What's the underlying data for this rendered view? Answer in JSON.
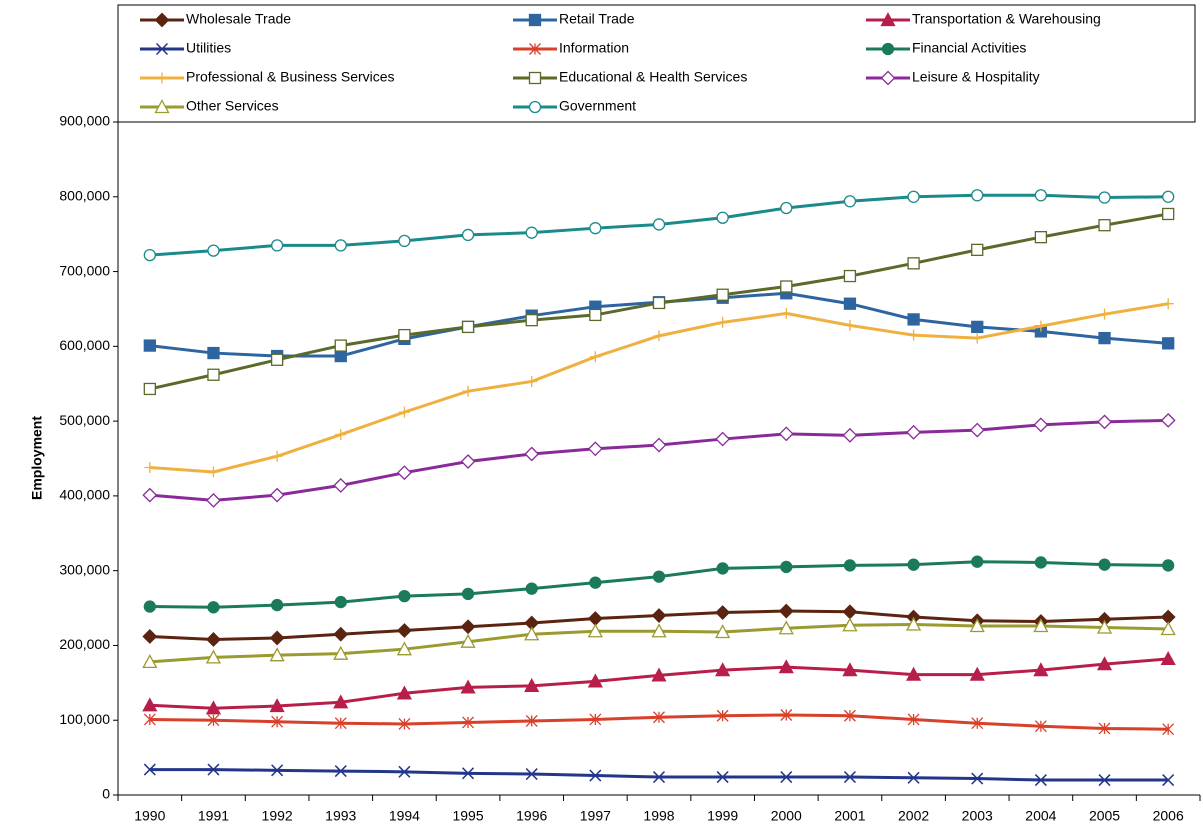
{
  "chart_data": {
    "type": "line",
    "y_label": "Employment",
    "categories": [
      "1990",
      "1991",
      "1992",
      "1993",
      "1994",
      "1995",
      "1996",
      "1997",
      "1998",
      "1999",
      "2000",
      "2001",
      "2002",
      "2003",
      "2004",
      "2005",
      "2006"
    ],
    "ylim": [
      0,
      900000
    ],
    "yticks": [
      0,
      {
        "value": 100000,
        "label": "100,000"
      },
      {
        "value": 200000,
        "label": "200,000"
      },
      {
        "value": 300000,
        "label": "300,000"
      },
      {
        "value": 400000,
        "label": "400,000"
      },
      {
        "value": 500000,
        "label": "500,000"
      },
      {
        "value": 600000,
        "label": "600,000"
      },
      {
        "value": 700000,
        "label": "700,000"
      },
      {
        "value": 800000,
        "label": "800,000"
      },
      {
        "value": 900000,
        "label": "900,000"
      }
    ],
    "grid": false,
    "legend": "top",
    "series": [
      {
        "name": "Wholesale Trade",
        "color": "#5a2410",
        "marker": "diamond",
        "values": [
          212000,
          208000,
          210000,
          215000,
          220000,
          225000,
          230000,
          236000,
          240000,
          244000,
          246000,
          245000,
          238000,
          233000,
          232000,
          235000,
          238000
        ]
      },
      {
        "name": "Retail Trade",
        "color": "#2e64a0",
        "marker": "square",
        "values": [
          601000,
          591000,
          587000,
          587000,
          610000,
          626000,
          641000,
          653000,
          659000,
          665000,
          671000,
          657000,
          636000,
          626000,
          620000,
          611000,
          604000
        ]
      },
      {
        "name": "Transportation & Warehousing",
        "color": "#b81e4a",
        "marker": "triangle",
        "values": [
          120000,
          116000,
          119000,
          124000,
          136000,
          144000,
          146000,
          152000,
          160000,
          167000,
          171000,
          167000,
          161000,
          161000,
          167000,
          175000,
          182000
        ]
      },
      {
        "name": "Utilities",
        "color": "#24368a",
        "marker": "x",
        "values": [
          34000,
          34000,
          33000,
          32000,
          31000,
          29000,
          28000,
          26000,
          24000,
          24000,
          24000,
          24000,
          23000,
          22000,
          20000,
          20000,
          20000
        ]
      },
      {
        "name": "Information",
        "color": "#d8402a",
        "marker": "asterisk",
        "values": [
          101000,
          100000,
          98000,
          96000,
          95000,
          97000,
          99000,
          101000,
          104000,
          106000,
          107000,
          106000,
          101000,
          96000,
          92000,
          89000,
          88000
        ]
      },
      {
        "name": "Financial Activities",
        "color": "#1a7a5a",
        "marker": "circle",
        "values": [
          252000,
          251000,
          254000,
          258000,
          266000,
          269000,
          276000,
          284000,
          292000,
          303000,
          305000,
          307000,
          308000,
          312000,
          311000,
          308000,
          307000
        ]
      },
      {
        "name": "Professional & Business Services",
        "color": "#f0b040",
        "marker": "plus",
        "values": [
          438000,
          432000,
          453000,
          482000,
          512000,
          540000,
          553000,
          586000,
          614000,
          632000,
          644000,
          628000,
          615000,
          611000,
          627000,
          643000,
          657000
        ]
      },
      {
        "name": "Educational & Health Services",
        "color": "#5a6a2a",
        "marker": "square-open",
        "values": [
          543000,
          562000,
          582000,
          601000,
          615000,
          626000,
          635000,
          642000,
          658000,
          669000,
          680000,
          694000,
          711000,
          729000,
          746000,
          762000,
          777000
        ]
      },
      {
        "name": "Leisure & Hospitality",
        "color": "#8a2a9a",
        "marker": "diamond-open",
        "values": [
          401000,
          394000,
          401000,
          414000,
          431000,
          446000,
          456000,
          463000,
          468000,
          476000,
          483000,
          481000,
          485000,
          488000,
          495000,
          499000,
          501000
        ]
      },
      {
        "name": "Other Services",
        "color": "#9a9a30",
        "marker": "triangle-open",
        "values": [
          178000,
          184000,
          187000,
          189000,
          195000,
          205000,
          215000,
          219000,
          219000,
          218000,
          223000,
          227000,
          228000,
          226000,
          226000,
          224000,
          222000
        ]
      },
      {
        "name": "Government",
        "color": "#1a8a8a",
        "marker": "circle-open",
        "values": [
          722000,
          728000,
          735000,
          735000,
          741000,
          749000,
          752000,
          758000,
          763000,
          772000,
          785000,
          794000,
          800000,
          802000,
          802000,
          799000,
          800000
        ]
      }
    ]
  }
}
